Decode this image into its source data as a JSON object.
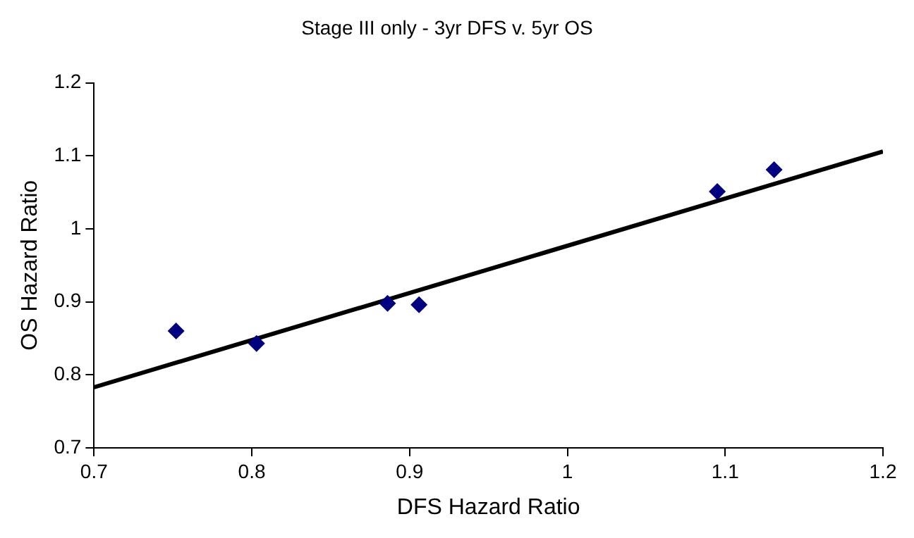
{
  "chart_data": {
    "type": "scatter",
    "title": "Stage III only - 3yr DFS v. 5yr OS",
    "xlabel": "DFS Hazard Ratio",
    "ylabel": "OS Hazard Ratio",
    "series": [
      {
        "color": "#000080",
        "marker": "diamond",
        "x": [
          0.752,
          0.803,
          0.886,
          0.906,
          1.095,
          1.131
        ],
        "values": [
          0.86,
          0.843,
          0.898,
          0.896,
          1.051,
          1.081
        ]
      },
      {
        "type": "line",
        "color": "#000000",
        "marker": "none",
        "x": [
          0.7,
          1.2
        ],
        "values": [
          0.783,
          1.106
        ]
      }
    ],
    "xlim": [
      0.7,
      1.2
    ],
    "xticks": [
      0.7,
      0.8,
      0.9,
      1,
      1.1,
      1.2
    ],
    "ylim": [
      0.7,
      1.2
    ],
    "yticks": [
      0.7,
      0.8,
      0.9,
      1,
      1.1,
      1.2
    ],
    "legend": false
  }
}
